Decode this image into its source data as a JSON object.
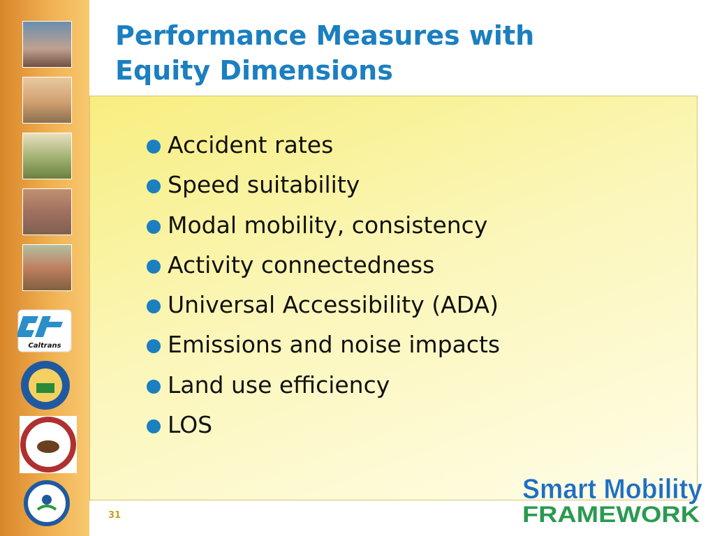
{
  "title": [
    "Performance Measures with",
    "Equity Dimensions"
  ],
  "bullets": [
    "Accident rates",
    "Speed suitability",
    "Modal mobility, consistency",
    "Activity connectedness",
    "Universal Accessibility (ADA)",
    "Emissions and noise impacts",
    "Land use efficiency",
    "LOS"
  ],
  "logo": {
    "line1": "Smart Mobility",
    "line2": "FRAMEWORK"
  },
  "sidebar_logo": "Caltrans",
  "page_number": "31"
}
